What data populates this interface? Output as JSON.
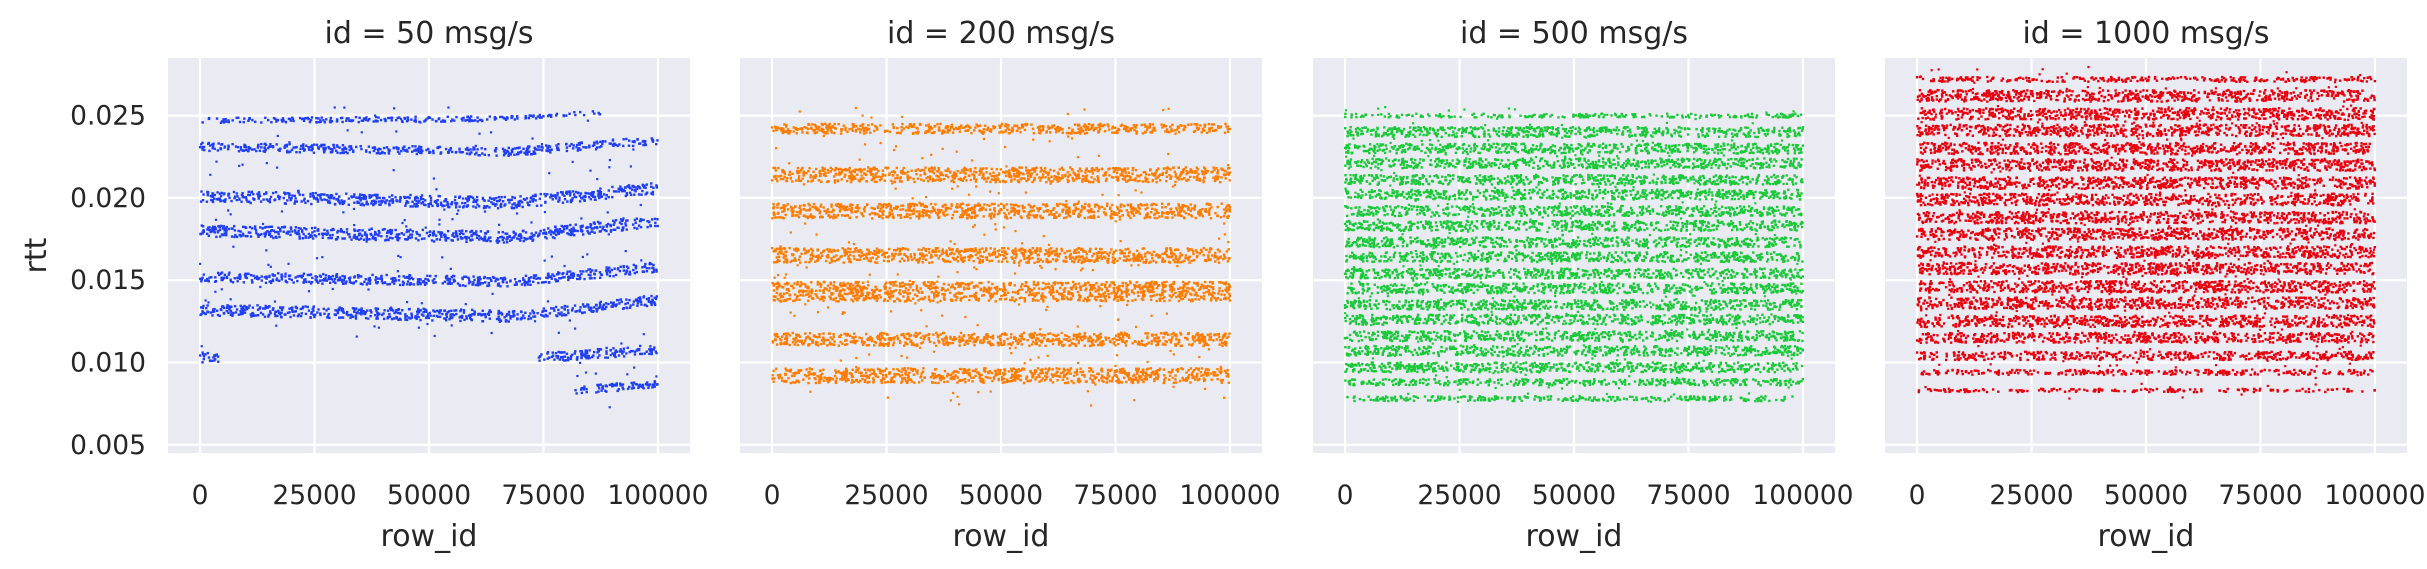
{
  "chart_data": [
    {
      "type": "scatter",
      "title": "id = 50 msg/s",
      "xlabel": "row_id",
      "ylabel": "rtt",
      "xlim": [
        -7000,
        107000
      ],
      "ylim": [
        0.0045,
        0.0285
      ],
      "xticks": [
        0,
        25000,
        50000,
        75000,
        100000
      ],
      "yticks": [
        0.005,
        0.01,
        0.015,
        0.02,
        0.025
      ],
      "grid": true,
      "color": "#1f3ff5",
      "bands": [
        {
          "x": [
            0,
            65000
          ],
          "y": [
            0.0247,
            0.0248
          ],
          "w": 0.00016
        },
        {
          "x": [
            65000,
            88000
          ],
          "y": [
            0.0248,
            0.0252
          ],
          "w": 0.00012
        },
        {
          "x": [
            0,
            68000
          ],
          "y": [
            0.0231,
            0.0228
          ],
          "w": 0.00025
        },
        {
          "x": [
            68000,
            100000
          ],
          "y": [
            0.0228,
            0.0235
          ],
          "w": 0.00025
        },
        {
          "x": [
            0,
            68000
          ],
          "y": [
            0.0201,
            0.0197
          ],
          "w": 0.00035
        },
        {
          "x": [
            68000,
            100000
          ],
          "y": [
            0.0197,
            0.0206
          ],
          "w": 0.00035
        },
        {
          "x": [
            0,
            68000
          ],
          "y": [
            0.018,
            0.0176
          ],
          "w": 0.00035
        },
        {
          "x": [
            68000,
            100000
          ],
          "y": [
            0.0176,
            0.0186
          ],
          "w": 0.00035
        },
        {
          "x": [
            0,
            68000
          ],
          "y": [
            0.0152,
            0.0149
          ],
          "w": 0.0003
        },
        {
          "x": [
            68000,
            100000
          ],
          "y": [
            0.0149,
            0.0158
          ],
          "w": 0.0003
        },
        {
          "x": [
            0,
            68000
          ],
          "y": [
            0.0132,
            0.0128
          ],
          "w": 0.00035
        },
        {
          "x": [
            68000,
            100000
          ],
          "y": [
            0.0128,
            0.0138
          ],
          "w": 0.0003
        },
        {
          "x": [
            0,
            4000
          ],
          "y": [
            0.0103,
            0.0103
          ],
          "w": 0.0003
        },
        {
          "x": [
            74000,
            100000
          ],
          "y": [
            0.0103,
            0.0108
          ],
          "w": 0.0003
        },
        {
          "x": [
            82000,
            100000
          ],
          "y": [
            0.0083,
            0.0087
          ],
          "w": 0.00025
        }
      ]
    },
    {
      "type": "scatter",
      "title": "id = 200 msg/s",
      "xlabel": "row_id",
      "ylabel": "",
      "xlim": [
        -7000,
        107000
      ],
      "ylim": [
        0.0045,
        0.0285
      ],
      "xticks": [
        0,
        25000,
        50000,
        75000,
        100000
      ],
      "yticks": [
        0.005,
        0.01,
        0.015,
        0.02,
        0.025
      ],
      "grid": true,
      "color": "#ff7c00",
      "bands": [
        {
          "x": [
            0,
            100000
          ],
          "y": [
            0.0242,
            0.0242
          ],
          "w": 0.0003
        },
        {
          "x": [
            0,
            100000
          ],
          "y": [
            0.0214,
            0.0214
          ],
          "w": 0.00045
        },
        {
          "x": [
            0,
            100000
          ],
          "y": [
            0.0192,
            0.0192
          ],
          "w": 0.00045
        },
        {
          "x": [
            0,
            100000
          ],
          "y": [
            0.0165,
            0.0165
          ],
          "w": 0.00045
        },
        {
          "x": [
            0,
            100000
          ],
          "y": [
            0.0143,
            0.0143
          ],
          "w": 0.0006
        },
        {
          "x": [
            0,
            100000
          ],
          "y": [
            0.0114,
            0.0114
          ],
          "w": 0.0004
        },
        {
          "x": [
            0,
            100000
          ],
          "y": [
            0.0092,
            0.0092
          ],
          "w": 0.00045
        }
      ]
    },
    {
      "type": "scatter",
      "title": "id = 500 msg/s",
      "xlabel": "row_id",
      "ylabel": "",
      "xlim": [
        -7000,
        107000
      ],
      "ylim": [
        0.0045,
        0.0285
      ],
      "xticks": [
        0,
        25000,
        50000,
        75000,
        100000
      ],
      "yticks": [
        0.005,
        0.01,
        0.015,
        0.02,
        0.025
      ],
      "grid": true,
      "color": "#1ac938",
      "bands": [
        {
          "x": [
            0,
            100000
          ],
          "y": [
            0.025,
            0.025
          ],
          "w": 0.00012
        },
        {
          "x": [
            0,
            100000
          ],
          "y": [
            0.024,
            0.024
          ],
          "w": 0.0003
        },
        {
          "x": [
            0,
            100000
          ],
          "y": [
            0.023,
            0.023
          ],
          "w": 0.0003
        },
        {
          "x": [
            0,
            100000
          ],
          "y": [
            0.0221,
            0.0221
          ],
          "w": 0.0003
        },
        {
          "x": [
            0,
            100000
          ],
          "y": [
            0.0211,
            0.0211
          ],
          "w": 0.0003
        },
        {
          "x": [
            0,
            100000
          ],
          "y": [
            0.0202,
            0.0202
          ],
          "w": 0.0003
        },
        {
          "x": [
            0,
            100000
          ],
          "y": [
            0.0192,
            0.0192
          ],
          "w": 0.0003
        },
        {
          "x": [
            0,
            100000
          ],
          "y": [
            0.0183,
            0.0183
          ],
          "w": 0.0003
        },
        {
          "x": [
            0,
            100000
          ],
          "y": [
            0.0173,
            0.0173
          ],
          "w": 0.0003
        },
        {
          "x": [
            0,
            100000
          ],
          "y": [
            0.0164,
            0.0164
          ],
          "w": 0.0003
        },
        {
          "x": [
            0,
            100000
          ],
          "y": [
            0.0154,
            0.0154
          ],
          "w": 0.0003
        },
        {
          "x": [
            0,
            100000
          ],
          "y": [
            0.0145,
            0.0145
          ],
          "w": 0.0003
        },
        {
          "x": [
            0,
            100000
          ],
          "y": [
            0.0135,
            0.0135
          ],
          "w": 0.0003
        },
        {
          "x": [
            0,
            100000
          ],
          "y": [
            0.0126,
            0.0126
          ],
          "w": 0.0003
        },
        {
          "x": [
            0,
            100000
          ],
          "y": [
            0.0116,
            0.0116
          ],
          "w": 0.0003
        },
        {
          "x": [
            0,
            100000
          ],
          "y": [
            0.0107,
            0.0107
          ],
          "w": 0.0003
        },
        {
          "x": [
            0,
            100000
          ],
          "y": [
            0.0097,
            0.0097
          ],
          "w": 0.0003
        },
        {
          "x": [
            0,
            100000
          ],
          "y": [
            0.0088,
            0.0088
          ],
          "w": 0.0002
        },
        {
          "x": [
            0,
            100000
          ],
          "y": [
            0.0078,
            0.0078
          ],
          "w": 0.00015
        }
      ]
    },
    {
      "type": "scatter",
      "title": "id = 1000 msg/s",
      "xlabel": "row_id",
      "ylabel": "",
      "xlim": [
        -7000,
        107000
      ],
      "ylim": [
        0.0045,
        0.0285
      ],
      "xticks": [
        0,
        25000,
        50000,
        75000,
        100000
      ],
      "yticks": [
        0.005,
        0.01,
        0.015,
        0.02,
        0.025
      ],
      "grid": true,
      "color": "#e8000b",
      "bands": [
        {
          "x": [
            0,
            100000
          ],
          "y": [
            0.0272,
            0.0272
          ],
          "w": 0.00015
        },
        {
          "x": [
            0,
            100000
          ],
          "y": [
            0.0262,
            0.0262
          ],
          "w": 0.00035
        },
        {
          "x": [
            0,
            100000
          ],
          "y": [
            0.0251,
            0.0251
          ],
          "w": 0.00035
        },
        {
          "x": [
            0,
            100000
          ],
          "y": [
            0.0241,
            0.0241
          ],
          "w": 0.00035
        },
        {
          "x": [
            0,
            100000
          ],
          "y": [
            0.023,
            0.023
          ],
          "w": 0.00035
        },
        {
          "x": [
            0,
            100000
          ],
          "y": [
            0.022,
            0.022
          ],
          "w": 0.00035
        },
        {
          "x": [
            0,
            100000
          ],
          "y": [
            0.0209,
            0.0209
          ],
          "w": 0.00035
        },
        {
          "x": [
            0,
            100000
          ],
          "y": [
            0.0199,
            0.0199
          ],
          "w": 0.00035
        },
        {
          "x": [
            0,
            100000
          ],
          "y": [
            0.0188,
            0.0188
          ],
          "w": 0.00035
        },
        {
          "x": [
            0,
            100000
          ],
          "y": [
            0.0178,
            0.0178
          ],
          "w": 0.00035
        },
        {
          "x": [
            0,
            100000
          ],
          "y": [
            0.0167,
            0.0167
          ],
          "w": 0.00035
        },
        {
          "x": [
            0,
            100000
          ],
          "y": [
            0.0157,
            0.0157
          ],
          "w": 0.00035
        },
        {
          "x": [
            0,
            100000
          ],
          "y": [
            0.0146,
            0.0146
          ],
          "w": 0.00035
        },
        {
          "x": [
            0,
            100000
          ],
          "y": [
            0.0136,
            0.0136
          ],
          "w": 0.00035
        },
        {
          "x": [
            0,
            100000
          ],
          "y": [
            0.0125,
            0.0125
          ],
          "w": 0.00035
        },
        {
          "x": [
            0,
            100000
          ],
          "y": [
            0.0115,
            0.0115
          ],
          "w": 0.0003
        },
        {
          "x": [
            0,
            100000
          ],
          "y": [
            0.0104,
            0.0104
          ],
          "w": 0.00025
        },
        {
          "x": [
            0,
            100000
          ],
          "y": [
            0.0094,
            0.0094
          ],
          "w": 0.00015
        },
        {
          "x": [
            0,
            100000
          ],
          "y": [
            0.0083,
            0.0083
          ],
          "w": 0.0001
        }
      ]
    }
  ]
}
